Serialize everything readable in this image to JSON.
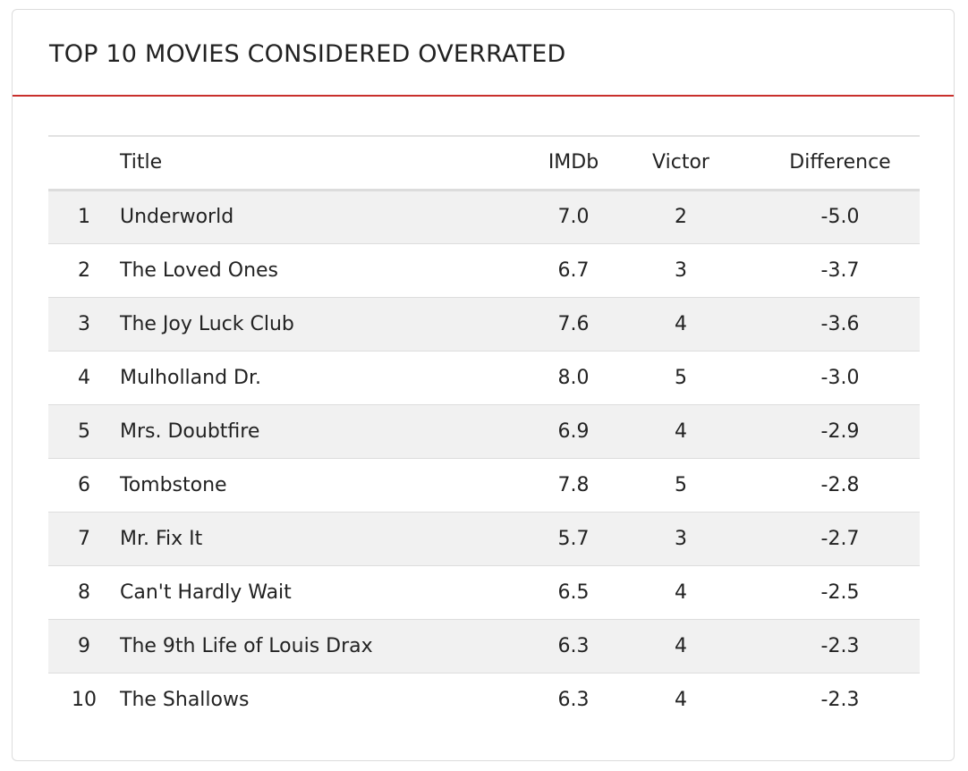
{
  "card": {
    "title": "TOP 10 MOVIES CONSIDERED OVERRATED"
  },
  "table": {
    "headers": {
      "rank": "",
      "title": "Title",
      "imdb": "IMDb",
      "victor": "Victor",
      "difference": "Difference"
    },
    "rows": [
      {
        "rank": "1",
        "title": "Underworld",
        "imdb": "7.0",
        "victor": "2",
        "difference": "-5.0"
      },
      {
        "rank": "2",
        "title": "The Loved Ones",
        "imdb": "6.7",
        "victor": "3",
        "difference": "-3.7"
      },
      {
        "rank": "3",
        "title": "The Joy Luck Club",
        "imdb": "7.6",
        "victor": "4",
        "difference": "-3.6"
      },
      {
        "rank": "4",
        "title": "Mulholland Dr.",
        "imdb": "8.0",
        "victor": "5",
        "difference": "-3.0"
      },
      {
        "rank": "5",
        "title": "Mrs. Doubtfire",
        "imdb": "6.9",
        "victor": "4",
        "difference": "-2.9"
      },
      {
        "rank": "6",
        "title": "Tombstone",
        "imdb": "7.8",
        "victor": "5",
        "difference": "-2.8"
      },
      {
        "rank": "7",
        "title": "Mr. Fix It",
        "imdb": "5.7",
        "victor": "3",
        "difference": "-2.7"
      },
      {
        "rank": "8",
        "title": "Can't Hardly Wait",
        "imdb": "6.5",
        "victor": "4",
        "difference": "-2.5"
      },
      {
        "rank": "9",
        "title": "The 9th Life of Louis Drax",
        "imdb": "6.3",
        "victor": "4",
        "difference": "-2.3"
      },
      {
        "rank": "10",
        "title": "The Shallows",
        "imdb": "6.3",
        "victor": "4",
        "difference": "-2.3"
      }
    ]
  },
  "colors": {
    "accent": "#c9302c",
    "stripe": "#f1f1f1",
    "border": "#dcdcdc"
  }
}
